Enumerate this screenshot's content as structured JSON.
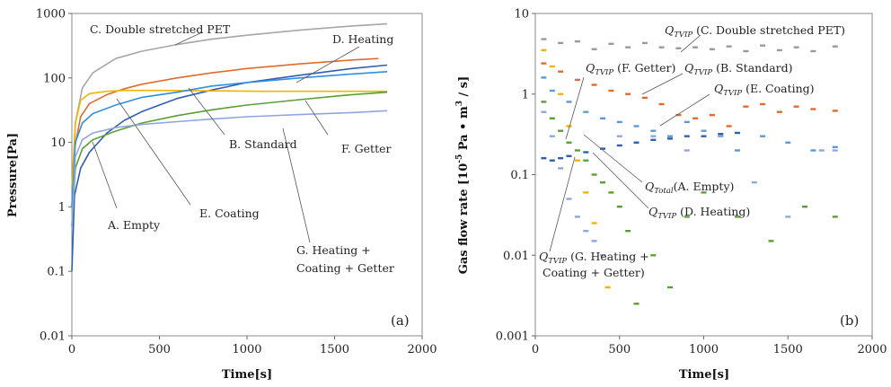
{
  "chart_data": [
    {
      "type": "line",
      "panel_label": "(a)",
      "xlabel": "Time[s]",
      "ylabel": "Pressure[Pa]",
      "xlim": [
        0,
        2000
      ],
      "ylim": [
        0.01,
        1000
      ],
      "yscale": "log",
      "grid": false,
      "x_ticks": [
        "0",
        "500",
        "1000",
        "1500",
        "2000"
      ],
      "y_ticks": [
        "0.01",
        "0.1",
        "1",
        "10",
        "100",
        "1000"
      ],
      "series": [
        {
          "name": "C. Double stretched PET",
          "color": "#a6a6a6",
          "x": [
            0,
            20,
            60,
            120,
            250,
            400,
            600,
            800,
            1000,
            1300,
            1600,
            1800
          ],
          "values": [
            0.5,
            20,
            70,
            120,
            200,
            260,
            330,
            400,
            460,
            550,
            640,
            690
          ]
        },
        {
          "name": "D. Heating",
          "color": "#2f5fb3",
          "x": [
            0,
            15,
            50,
            100,
            200,
            300,
            400,
            600,
            800,
            1000,
            1300,
            1600,
            1800
          ],
          "values": [
            0.1,
            1.5,
            4,
            7,
            14,
            22,
            30,
            48,
            65,
            85,
            110,
            140,
            158
          ]
        },
        {
          "name": "B. Standard",
          "color": "#e06c2c",
          "x": [
            0,
            15,
            50,
            100,
            200,
            300,
            400,
            600,
            800,
            1000,
            1300,
            1600,
            1750
          ],
          "values": [
            1,
            8,
            25,
            40,
            55,
            68,
            80,
            100,
            120,
            140,
            165,
            190,
            200
          ]
        },
        {
          "name": "F. Getter",
          "color": "#f0b400",
          "x": [
            0,
            20,
            50,
            100,
            200,
            300,
            500,
            800,
            1100,
            1400,
            1800
          ],
          "values": [
            2,
            20,
            45,
            57,
            62,
            64,
            64,
            63,
            62,
            62,
            62
          ]
        },
        {
          "name": "E. Coating",
          "color": "#2f8fe0",
          "x": [
            0,
            20,
            60,
            120,
            250,
            400,
            600,
            800,
            1000,
            1300,
            1600,
            1800
          ],
          "values": [
            1,
            10,
            20,
            28,
            38,
            50,
            60,
            75,
            85,
            100,
            115,
            125
          ]
        },
        {
          "name": "A. Empty",
          "color": "#5a9e35",
          "x": [
            0,
            20,
            60,
            120,
            250,
            400,
            600,
            800,
            1000,
            1300,
            1600,
            1800
          ],
          "values": [
            0.5,
            4,
            8,
            11,
            15,
            20,
            26,
            32,
            38,
            46,
            55,
            60
          ]
        },
        {
          "name": "G. Heating + Coating + Getter",
          "color": "#8fa6dd",
          "x": [
            0,
            20,
            60,
            120,
            250,
            400,
            600,
            800,
            1000,
            1300,
            1600,
            1800
          ],
          "values": [
            0.5,
            6,
            11,
            14,
            17,
            19,
            21,
            23,
            25,
            27,
            29,
            31
          ]
        }
      ],
      "annotations": [
        {
          "text": "C. Double stretched PET"
        },
        {
          "text": "D. Heating"
        },
        {
          "text": "B. Standard"
        },
        {
          "text": "F. Getter"
        },
        {
          "text": "A. Empty"
        },
        {
          "text": "E. Coating"
        },
        {
          "text": "G. Heating +"
        },
        {
          "text": "Coating + Getter"
        }
      ]
    },
    {
      "type": "scatter",
      "panel_label": "(b)",
      "xlabel": "Time[s]",
      "ylabel_parts": [
        "Gas flow rate [10",
        "-5",
        " Pa • m",
        "3",
        " / s]"
      ],
      "xlim": [
        0,
        2000
      ],
      "ylim": [
        0.001,
        10
      ],
      "yscale": "log",
      "grid": false,
      "x_ticks": [
        "0",
        "500",
        "1000",
        "1500",
        "2000"
      ],
      "y_ticks": [
        "0.001",
        "0.01",
        "0.1",
        "1",
        "10"
      ],
      "series": [
        {
          "name": "Q_TVIP (C. Double stretched PET)",
          "color": "#9a9a9a",
          "x": [
            50,
            150,
            250,
            350,
            450,
            550,
            650,
            750,
            850,
            950,
            1050,
            1150,
            1250,
            1350,
            1450,
            1550,
            1650,
            1780
          ],
          "values": [
            4.8,
            4.3,
            4.5,
            3.6,
            4.2,
            3.8,
            4.3,
            3.8,
            3.7,
            3.8,
            3.6,
            3.9,
            3.4,
            4.0,
            3.5,
            3.8,
            3.4,
            3.9
          ]
        },
        {
          "name": "Q_TVIP (B. Standard)",
          "color": "#e06c2c",
          "x": [
            50,
            150,
            250,
            350,
            450,
            550,
            650,
            750,
            850,
            950,
            1050,
            1150,
            1250,
            1350,
            1450,
            1550,
            1650,
            1780
          ],
          "values": [
            2.4,
            1.9,
            1.5,
            1.3,
            1.1,
            1.0,
            0.9,
            0.75,
            0.55,
            0.5,
            0.55,
            0.4,
            0.7,
            0.75,
            0.6,
            0.7,
            0.65,
            0.62
          ]
        },
        {
          "name": "Q_Total (A. Empty)",
          "color": "#2f5fb3",
          "x": [
            50,
            100,
            150,
            200,
            300,
            400,
            500,
            600,
            700,
            800,
            900,
            1000,
            1100,
            1200
          ],
          "values": [
            0.16,
            0.15,
            0.16,
            0.17,
            0.19,
            0.21,
            0.23,
            0.25,
            0.27,
            0.28,
            0.3,
            0.3,
            0.32,
            0.33
          ]
        },
        {
          "name": "Q_TVIP (E. Coating)",
          "color": "#5b9bd5",
          "x": [
            50,
            100,
            200,
            300,
            400,
            500,
            600,
            700,
            800,
            900,
            1000,
            1100,
            1200,
            1350,
            1500,
            1650,
            1780
          ],
          "values": [
            1.6,
            1.1,
            0.8,
            0.6,
            0.5,
            0.45,
            0.4,
            0.35,
            0.3,
            0.45,
            0.35,
            0.3,
            0.2,
            0.3,
            0.25,
            0.2,
            0.22
          ]
        },
        {
          "name": "Q_TVIP (F. Getter)",
          "color": "#f0b400",
          "x": [
            50,
            100,
            150,
            200,
            250,
            300,
            350,
            400,
            430
          ],
          "values": [
            3.5,
            2.2,
            1.0,
            0.4,
            0.15,
            0.06,
            0.025,
            0.01,
            0.004
          ]
        },
        {
          "name": "Q_TVIP (D. Heating)",
          "color": "#5a9e35",
          "x": [
            50,
            100,
            150,
            200,
            250,
            300,
            350,
            400,
            450,
            500,
            550,
            600,
            700,
            800,
            900,
            1000,
            1200,
            1400,
            1600,
            1780
          ],
          "values": [
            0.8,
            0.5,
            0.35,
            0.25,
            0.2,
            0.15,
            0.1,
            0.08,
            0.06,
            0.04,
            0.02,
            0.0025,
            0.01,
            0.004,
            0.03,
            0.06,
            0.03,
            0.015,
            0.04,
            0.03
          ]
        },
        {
          "name": "Q_TVIP (G. Heating + Coating + Getter)",
          "color": "#8fa6dd",
          "x": [
            50,
            100,
            150,
            200,
            250,
            300,
            350,
            400,
            500,
            700,
            900,
            1100,
            1300,
            1500,
            1700,
            1780
          ],
          "values": [
            0.6,
            0.3,
            0.12,
            0.05,
            0.03,
            0.02,
            0.015,
            0.01,
            0.3,
            0.3,
            0.2,
            0.3,
            0.08,
            0.03,
            0.2,
            0.2
          ]
        }
      ],
      "annotations": [
        {
          "q": "Q",
          "sub": "TVIP",
          "text": " (C. Double stretched PET)"
        },
        {
          "q": "Q",
          "sub": "TVIP",
          "text": " (F. Getter)"
        },
        {
          "q": "Q",
          "sub": "TVIP",
          "text": " (B. Standard)"
        },
        {
          "q": "Q",
          "sub": "TVIP",
          "text": " (E. Coating)"
        },
        {
          "q": "Q",
          "sub": "Total",
          "text": "(A. Empty)"
        },
        {
          "q": "Q",
          "sub": "TVIP",
          "text": " (D. Heating)"
        },
        {
          "q": "Q",
          "sub": "TVIP",
          "text": " (G. Heating +"
        },
        {
          "text": "Coating + Getter)"
        }
      ]
    }
  ]
}
